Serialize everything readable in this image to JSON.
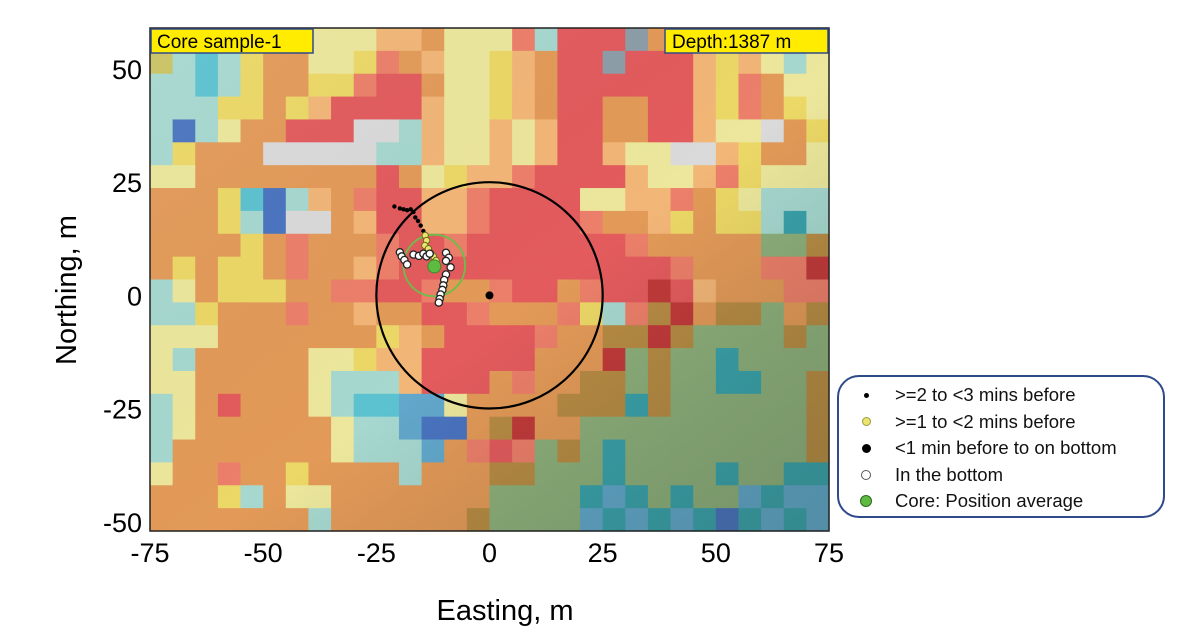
{
  "chart_data": {
    "type": "heatmap",
    "title": "",
    "xlabel": "Easting, m",
    "ylabel": "Northing, m",
    "xlim": [
      -75,
      75
    ],
    "ylim": [
      -52,
      59
    ],
    "xticks": [
      -75,
      -50,
      -25,
      0,
      25,
      50,
      75
    ],
    "yticks": [
      50,
      25,
      0,
      -25,
      -50
    ],
    "xtick_labels": [
      "-75",
      "-50",
      "-25",
      "0",
      "25",
      "50",
      "75"
    ],
    "ytick_labels": [
      "50",
      "25",
      "0",
      "-25",
      "-50"
    ],
    "grid": false,
    "annotations": {
      "top_left": "Core sample-1",
      "top_right": "Depth:1387 m"
    },
    "heatmap": {
      "columns": 30,
      "rows": 22,
      "palette": {
        "R": "#e35b5d",
        "r": "#ec7f6a",
        "O": "#e39a58",
        "o": "#f2b677",
        "Y": "#ecd866",
        "y": "#ece79c",
        "G": "#c9c262",
        "g": "#dadada",
        "C": "#5cc2d0",
        "c": "#a6d8cf",
        "B": "#4a74c0",
        "b": "#62a8cc",
        "D": "#c23a3a",
        "T": "#3aa3ac",
        "K": "#b88c44",
        "M": "#8eb07c",
        "P": "#8d9ea8"
      },
      "cells": [
        "GcccYOoyyyooOyyyrcRRRPOoyyyycc",
        "GcCcYOOyyYrOoyyYoORRPRRRoYoycy",
        "ccCcYOOYYrRROyyYoORRRRRRoYrOyy",
        "cccYYOYoRRRRoyyYoORROORRoYrOYy",
        "cBcyOORRRggcoyyoyoRROORRoyygOY",
        "cYOOOgggggccoyyoyoRRoyyggoYOOy",
        "yyOOOOOOOOROyYoorRRRRoyyorYyyy",
        "OOOYCBcoOrRRoorRRRRyyoorOYyccc",
        "OOOYcBggOoRRoorRRRRrOOoYOYYcTc",
        "OOOOYOrOOOrRRrRRRRRRRrOOOOOMMK",
        "OYOYYOrOOorRRRRRRRRRRRRrOOOrrD",
        "cyOYYYOOrrRRrOOrRROrRRDRoOOOrr",
        "ccYOOOrOOoOORRrOOOrYcrKDOKKMOK",
        "yyyOOOOOOOYoORRRRrOOKKDKMMMMKM",
        "ycOOOOOyyYooRRRRROOODMKMMTMMMM",
        "yyOOOOOycccoRRROrOOKKMKMMTTMMK",
        "cyOROOOycCCbbyOOOOKKKTKMMMMMMK",
        "cyOOOOOOyccbBBOKDOOMMMMMMMMMMK",
        "cOOOOOOOycccbOrRrMKMTMMMMMMMMK",
        "yOOrOOYOOOOcOOOKKMMMTMMMMTMMTT",
        "OOOYcOyyOOOOOOOMMMMTbTMTMMbTbb",
        "OOOOOOOcOOOOOOKMMMMbTbTbTBTbTb"
      ]
    },
    "series": [
      {
        "name": ">=2 to <3 mins before",
        "marker": "small-black-dot",
        "color": "#000000",
        "points": [
          [
            -21,
            19.6
          ],
          [
            -19.8,
            19.2
          ],
          [
            -19,
            19
          ],
          [
            -18.2,
            18.8
          ],
          [
            -17.4,
            19
          ],
          [
            -16.8,
            18.4
          ],
          [
            -16.4,
            17.2
          ],
          [
            -15.8,
            16.4
          ],
          [
            -15.2,
            15.4
          ],
          [
            -14.6,
            14.2
          ]
        ]
      },
      {
        "name": ">=1 to <2 mins before",
        "marker": "yellow-dot",
        "color": "#e8e05a",
        "points": [
          [
            -14.2,
            13.2
          ],
          [
            -13.9,
            12.1
          ],
          [
            -14.3,
            11
          ],
          [
            -13.5,
            10.3
          ],
          [
            -13,
            9.3
          ],
          [
            -12.4,
            8.6
          ],
          [
            -11.8,
            7.7
          ]
        ]
      },
      {
        "name": "<1 min before to on bottom",
        "marker": "black-dot",
        "color": "#000000",
        "points": [
          [
            0,
            0
          ]
        ]
      },
      {
        "name": "In the bottom",
        "marker": "white-dot",
        "color": "#ffffff",
        "points": [
          [
            -19.8,
            9.5
          ],
          [
            -19.4,
            8.6
          ],
          [
            -18.8,
            7.8
          ],
          [
            -18.2,
            6.8
          ],
          [
            -16.8,
            9
          ],
          [
            -15.6,
            8.7
          ],
          [
            -14.6,
            9.2
          ],
          [
            -13.9,
            8.6
          ],
          [
            -13.2,
            9.2
          ],
          [
            -9.6,
            9.4
          ],
          [
            -9,
            8.3
          ],
          [
            -9.6,
            7.6
          ],
          [
            -8.6,
            6.2
          ],
          [
            -9.6,
            4.6
          ],
          [
            -10,
            3.4
          ],
          [
            -10.2,
            2.2
          ],
          [
            -10.4,
            1.2
          ],
          [
            -10.8,
            0.2
          ],
          [
            -11,
            -0.8
          ],
          [
            -11.2,
            -1.6
          ]
        ]
      },
      {
        "name": "Core: Position average",
        "marker": "green-dot",
        "color": "#5cbb40",
        "points": [
          [
            -12.2,
            6.4
          ]
        ]
      }
    ],
    "circles": [
      {
        "name": "search-radius",
        "center": [
          0,
          0
        ],
        "radius": 25,
        "color": "#000000"
      },
      {
        "name": "core-spread",
        "center": [
          -12.2,
          6.6
        ],
        "radius": 6.8,
        "color": "#6abf4a"
      }
    ],
    "legend": {
      "placement": "right-bottom",
      "entries": [
        {
          "label": ">=2 to <3 mins before",
          "marker": "small-black-dot",
          "fill": "#000000",
          "stroke": "#000000"
        },
        {
          "label": ">=1 to <2 mins before",
          "marker": "yellow-dot",
          "fill": "#ece46c",
          "stroke": "#9a9a40"
        },
        {
          "label": "<1 min before to on bottom",
          "marker": "black-dot",
          "fill": "#000000",
          "stroke": "#000000"
        },
        {
          "label": "In the bottom",
          "marker": "white-dot",
          "fill": "#ffffff",
          "stroke": "#555555"
        },
        {
          "label": "Core: Position average",
          "marker": "green-dot",
          "fill": "#5cbb40",
          "stroke": "#2f6a20"
        }
      ]
    },
    "colors": {
      "tag_fill": "#ffec00",
      "tag_border": "#2f4a8a",
      "legend_border": "#2f4a8a"
    }
  }
}
